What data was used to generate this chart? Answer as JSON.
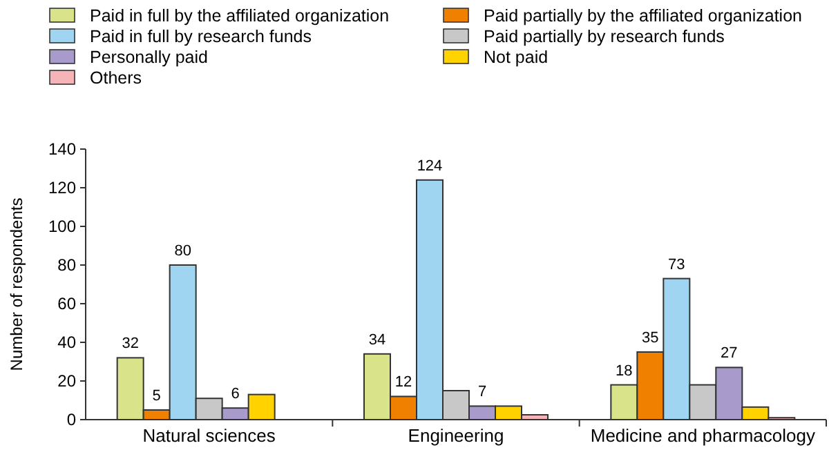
{
  "chart_data": {
    "type": "bar",
    "ylabel": "Number of respondents",
    "categories": [
      "Natural sciences",
      "Engineering",
      "Medicine and pharmacology"
    ],
    "ylim": [
      0,
      140
    ],
    "yticks": [
      0,
      20,
      40,
      60,
      80,
      100,
      120,
      140
    ],
    "legend": "top",
    "grid": false,
    "series": [
      {
        "name": "Paid in full by the affiliated organization",
        "color": "#d9e38a",
        "values": [
          32,
          34,
          18
        ],
        "value_labels": [
          "32",
          "34",
          "18"
        ]
      },
      {
        "name": "Paid partially by the affiliated organization",
        "color": "#f08000",
        "values": [
          5,
          12,
          35
        ],
        "value_labels": [
          "5",
          "12",
          "35"
        ]
      },
      {
        "name": "Paid in full by research funds",
        "color": "#9fd5f0",
        "values": [
          80,
          124,
          73
        ],
        "value_labels": [
          "80",
          "124",
          "73"
        ]
      },
      {
        "name": "Paid partially by research funds",
        "color": "#c8c8c8",
        "values": [
          11,
          15,
          18
        ]
      },
      {
        "name": "Personally paid",
        "color": "#a89bcc",
        "values": [
          6,
          7,
          27
        ],
        "value_labels": [
          "6",
          "7",
          "27"
        ]
      },
      {
        "name": "Not paid",
        "color": "#ffd200",
        "values": [
          13,
          7,
          6.5
        ]
      },
      {
        "name": "Others",
        "color": "#f4b4b8",
        "values": [
          0,
          2.5,
          1
        ]
      }
    ]
  }
}
